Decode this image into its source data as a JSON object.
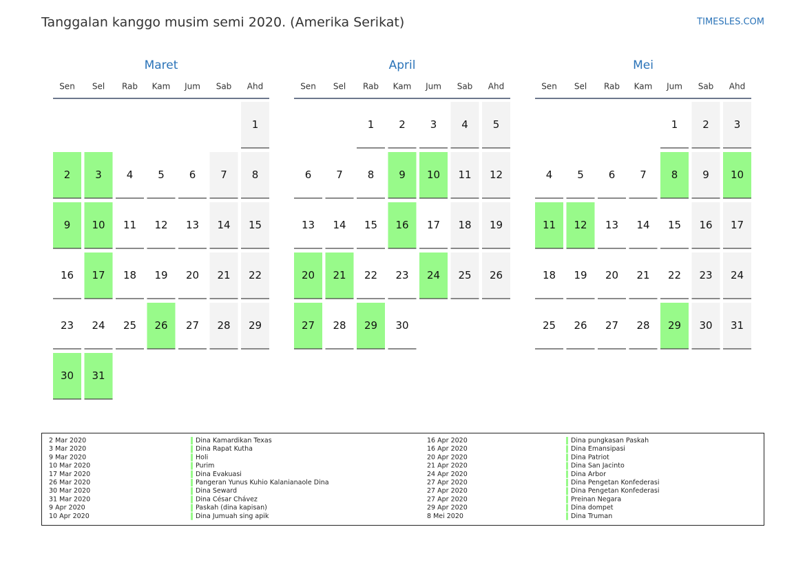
{
  "header": {
    "title": "Tanggalan kanggo musim semi 2020. (Amerika Serikat)",
    "site": "TIMESLES.COM"
  },
  "weekdays": [
    "Sen",
    "Sel",
    "Rab",
    "Kam",
    "Jum",
    "Sab",
    "Ahd"
  ],
  "months": [
    {
      "name": "Maret",
      "weeks": [
        [
          null,
          null,
          null,
          null,
          null,
          null,
          1
        ],
        [
          2,
          3,
          4,
          5,
          6,
          7,
          8
        ],
        [
          9,
          10,
          11,
          12,
          13,
          14,
          15
        ],
        [
          16,
          17,
          18,
          19,
          20,
          21,
          22
        ],
        [
          23,
          24,
          25,
          26,
          27,
          28,
          29
        ],
        [
          30,
          31,
          null,
          null,
          null,
          null,
          null
        ]
      ],
      "holidays": [
        2,
        3,
        9,
        10,
        17,
        26,
        30,
        31
      ]
    },
    {
      "name": "April",
      "weeks": [
        [
          null,
          null,
          1,
          2,
          3,
          4,
          5
        ],
        [
          6,
          7,
          8,
          9,
          10,
          11,
          12
        ],
        [
          13,
          14,
          15,
          16,
          17,
          18,
          19
        ],
        [
          20,
          21,
          22,
          23,
          24,
          25,
          26
        ],
        [
          27,
          28,
          29,
          30,
          null,
          null,
          null
        ]
      ],
      "holidays": [
        9,
        10,
        16,
        20,
        21,
        24,
        27,
        29
      ]
    },
    {
      "name": "Mei",
      "weeks": [
        [
          null,
          null,
          null,
          null,
          1,
          2,
          3
        ],
        [
          4,
          5,
          6,
          7,
          8,
          9,
          10
        ],
        [
          11,
          12,
          13,
          14,
          15,
          16,
          17
        ],
        [
          18,
          19,
          20,
          21,
          22,
          23,
          24
        ],
        [
          25,
          26,
          27,
          28,
          29,
          30,
          31
        ]
      ],
      "holidays": [
        8,
        10,
        11,
        12,
        29
      ]
    }
  ],
  "holiday_list": [
    {
      "date": "2 Mar 2020",
      "name": "Dina Kamardikan Texas"
    },
    {
      "date": "3 Mar 2020",
      "name": "Dina Rapat Kutha"
    },
    {
      "date": "9 Mar 2020",
      "name": "Holi"
    },
    {
      "date": "10 Mar 2020",
      "name": "Purim"
    },
    {
      "date": "17 Mar 2020",
      "name": "Dina Evakuasi"
    },
    {
      "date": "26 Mar 2020",
      "name": "Pangeran Yunus Kuhio Kalanianaole Dina"
    },
    {
      "date": "30 Mar 2020",
      "name": "Dina Seward"
    },
    {
      "date": "31 Mar 2020",
      "name": "Dina César Chávez"
    },
    {
      "date": "9 Apr 2020",
      "name": "Paskah (dina kapisan)"
    },
    {
      "date": "10 Apr 2020",
      "name": "Dina Jumuah sing apik"
    },
    {
      "date": "16 Apr 2020",
      "name": "Dina pungkasan Paskah"
    },
    {
      "date": "16 Apr 2020",
      "name": "Dina Emansipasi"
    },
    {
      "date": "20 Apr 2020",
      "name": "Dina Patriot"
    },
    {
      "date": "21 Apr 2020",
      "name": "Dina San Jacinto"
    },
    {
      "date": "24 Apr 2020",
      "name": "Dina Arbor"
    },
    {
      "date": "27 Apr 2020",
      "name": "Dina Pengetan Konfederasi"
    },
    {
      "date": "27 Apr 2020",
      "name": "Dina Pengetan Konfederasi"
    },
    {
      "date": "27 Apr 2020",
      "name": "Preinan Negara"
    },
    {
      "date": "29 Apr 2020",
      "name": "Dina dompet"
    },
    {
      "date": "8 Mei 2020",
      "name": "Dina Truman"
    }
  ]
}
